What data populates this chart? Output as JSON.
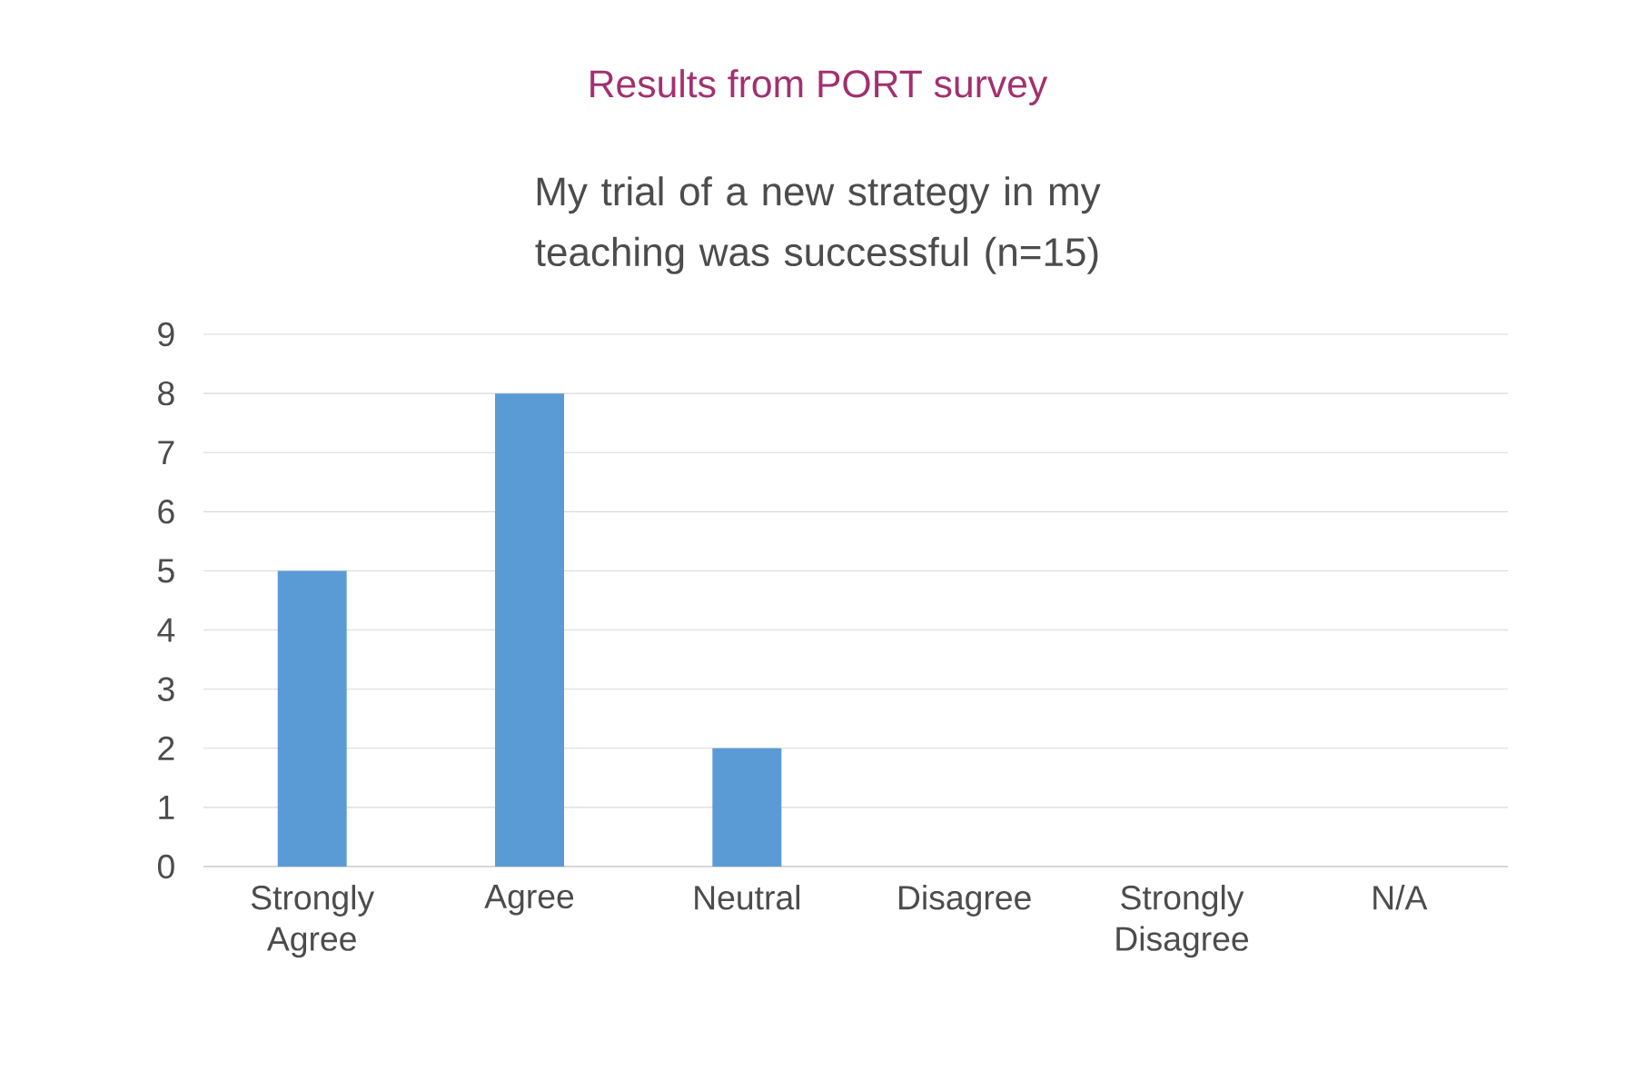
{
  "chart_data": {
    "type": "bar",
    "title": "Results from PORT survey",
    "subtitle": "My trial of a new strategy in my teaching was successful (n=15)",
    "categories": [
      "Strongly Agree",
      "Agree",
      "Neutral",
      "Disagree",
      "Strongly Disagree",
      "N/A"
    ],
    "values": [
      5,
      8,
      2,
      0,
      0,
      0
    ],
    "color": "#5b9bd5",
    "ylim": [
      0,
      9
    ],
    "yticks": [
      0,
      1,
      2,
      3,
      4,
      5,
      6,
      7,
      8,
      9
    ],
    "grid": "y"
  }
}
